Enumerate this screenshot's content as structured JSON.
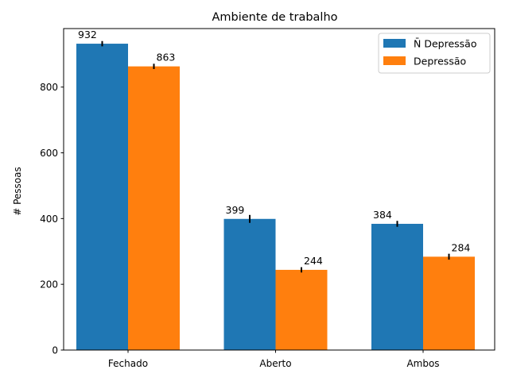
{
  "chart_data": {
    "type": "bar",
    "title": "Ambiente de trabalho",
    "xlabel": "",
    "ylabel": "# Pessoas",
    "categories": [
      "Fechado",
      "Aberto",
      "Ambos"
    ],
    "series": [
      {
        "name": "N̄ Depressão",
        "values": [
          932,
          399,
          384
        ],
        "error": [
          8,
          12,
          9
        ],
        "color": "#1f77b4"
      },
      {
        "name": "Depressão",
        "values": [
          863,
          244,
          284
        ],
        "error": [
          8,
          8,
          9
        ],
        "color": "#ff7f0e"
      }
    ],
    "ylim": [
      0,
      978
    ],
    "yticks": [
      0,
      200,
      400,
      600,
      800
    ],
    "grid": false,
    "legend_position": "top-right"
  }
}
